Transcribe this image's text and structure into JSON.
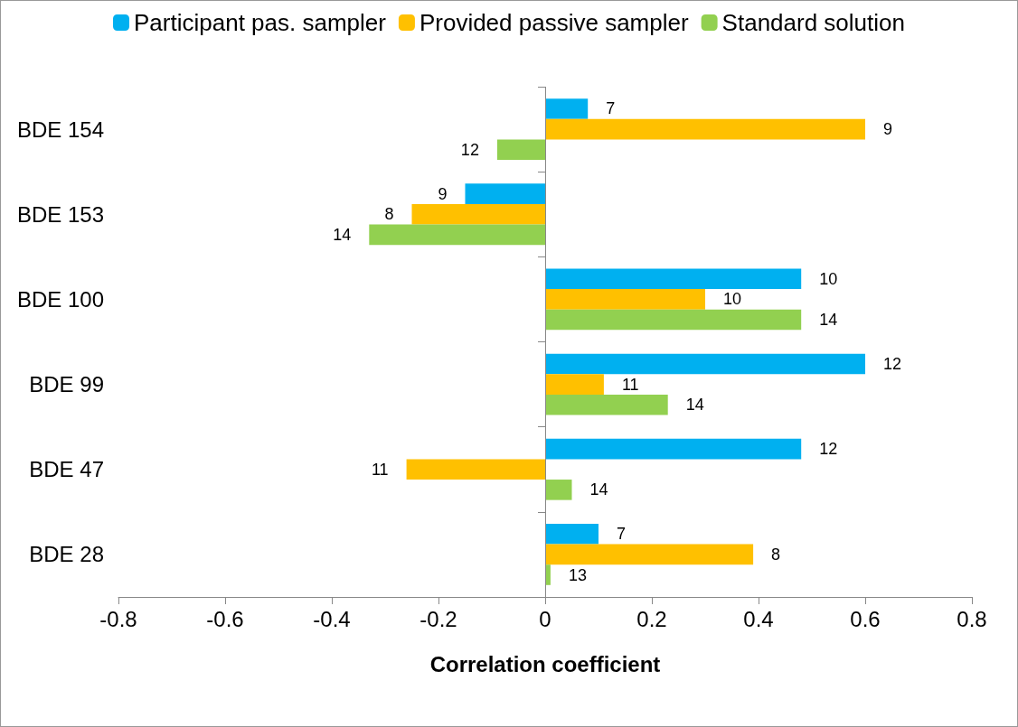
{
  "chart_data": {
    "type": "bar",
    "orientation": "horizontal",
    "xlabel": "Correlation coefficient",
    "categories": [
      "BDE 154",
      "BDE 153",
      "BDE 100",
      "BDE 99",
      "BDE 47",
      "BDE 28"
    ],
    "series": [
      {
        "name": "Participant pas. sampler",
        "color": "#00b0f0",
        "values": [
          0.08,
          -0.15,
          0.48,
          0.6,
          0.48,
          0.1
        ]
      },
      {
        "name": "Provided passive sampler",
        "color": "#ffc000",
        "values": [
          0.6,
          -0.25,
          0.3,
          0.11,
          -0.26,
          0.39
        ]
      },
      {
        "name": "Standard solution",
        "color": "#92d050",
        "values": [
          -0.09,
          -0.33,
          0.48,
          0.23,
          0.05,
          0.01
        ]
      }
    ],
    "annotations": [
      "7",
      "9",
      "12",
      "9",
      "8",
      "14",
      "10",
      "10",
      "14",
      "12",
      "11",
      "14",
      "12",
      "11",
      "14",
      "7",
      "8",
      "13"
    ],
    "ref_lines": [
      {
        "axis": "x",
        "value": 0,
        "color": "#888888"
      }
    ],
    "xlim": [
      -0.8,
      0.8
    ],
    "xticks": [
      -0.8,
      -0.6,
      -0.4,
      -0.2,
      0,
      0.2,
      0.4,
      0.6,
      0.8
    ],
    "grid": false,
    "legend": "top"
  }
}
